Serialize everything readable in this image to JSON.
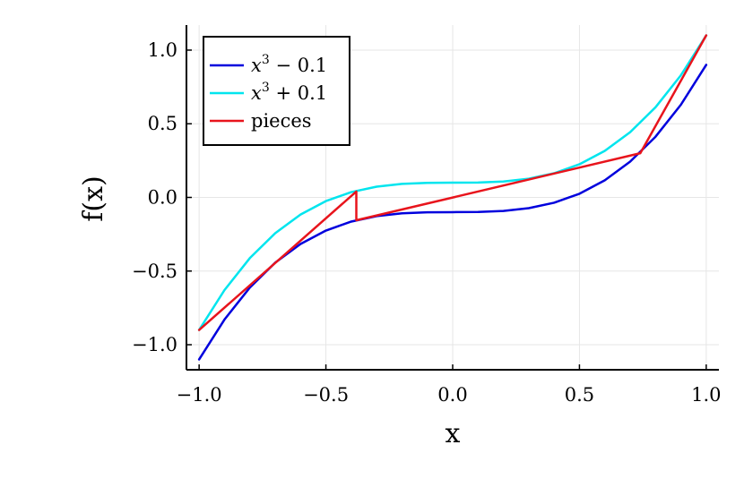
{
  "chart_data": {
    "type": "line",
    "title": "",
    "xlabel": "x",
    "ylabel": "f(x)",
    "xlim": [
      -1.05,
      1.05
    ],
    "ylim": [
      -1.17,
      1.17
    ],
    "xticks": [
      -1.0,
      -0.5,
      0.0,
      0.5,
      1.0
    ],
    "yticks": [
      -1.0,
      -0.5,
      0.0,
      0.5,
      1.0
    ],
    "xtick_labels": [
      "−1.0",
      "−0.5",
      "0.0",
      "0.5",
      "1.0"
    ],
    "ytick_labels": [
      "−1.0",
      "−0.5",
      "0.0",
      "0.5",
      "1.0"
    ],
    "grid": true,
    "legend_position": "top-left",
    "series": [
      {
        "name": "x³ − 0.1",
        "legend_base": "x",
        "legend_sup": "3",
        "legend_rest": " − 0.1",
        "color": "#0000dd",
        "x": [
          -1.0,
          -0.9,
          -0.8,
          -0.7,
          -0.6,
          -0.5,
          -0.4,
          -0.3,
          -0.2,
          -0.1,
          0.0,
          0.1,
          0.2,
          0.3,
          0.4,
          0.5,
          0.6,
          0.7,
          0.8,
          0.9,
          1.0
        ],
        "y": [
          -1.1,
          -0.829,
          -0.612,
          -0.443,
          -0.316,
          -0.225,
          -0.164,
          -0.127,
          -0.108,
          -0.101,
          -0.1,
          -0.099,
          -0.092,
          -0.073,
          -0.036,
          0.025,
          0.116,
          0.243,
          0.412,
          0.629,
          0.9
        ]
      },
      {
        "name": "x³ + 0.1",
        "legend_base": "x",
        "legend_sup": "3",
        "legend_rest": " + 0.1",
        "color": "#00e5ee",
        "x": [
          -1.0,
          -0.9,
          -0.8,
          -0.7,
          -0.6,
          -0.5,
          -0.4,
          -0.3,
          -0.2,
          -0.1,
          0.0,
          0.1,
          0.2,
          0.3,
          0.4,
          0.5,
          0.6,
          0.7,
          0.8,
          0.9,
          1.0
        ],
        "y": [
          -0.9,
          -0.629,
          -0.412,
          -0.243,
          -0.116,
          -0.025,
          0.036,
          0.073,
          0.092,
          0.099,
          0.1,
          0.101,
          0.108,
          0.127,
          0.164,
          0.225,
          0.316,
          0.443,
          0.612,
          0.829,
          1.1
        ]
      },
      {
        "name": "pieces",
        "legend_base": "pieces",
        "legend_sup": "",
        "legend_rest": "",
        "color": "#e8141c",
        "x": [
          -1.0,
          -0.38,
          -0.38,
          0.74,
          0.74,
          1.0
        ],
        "y": [
          -0.9,
          0.04,
          -0.155,
          0.3,
          0.3,
          1.1
        ]
      }
    ]
  }
}
